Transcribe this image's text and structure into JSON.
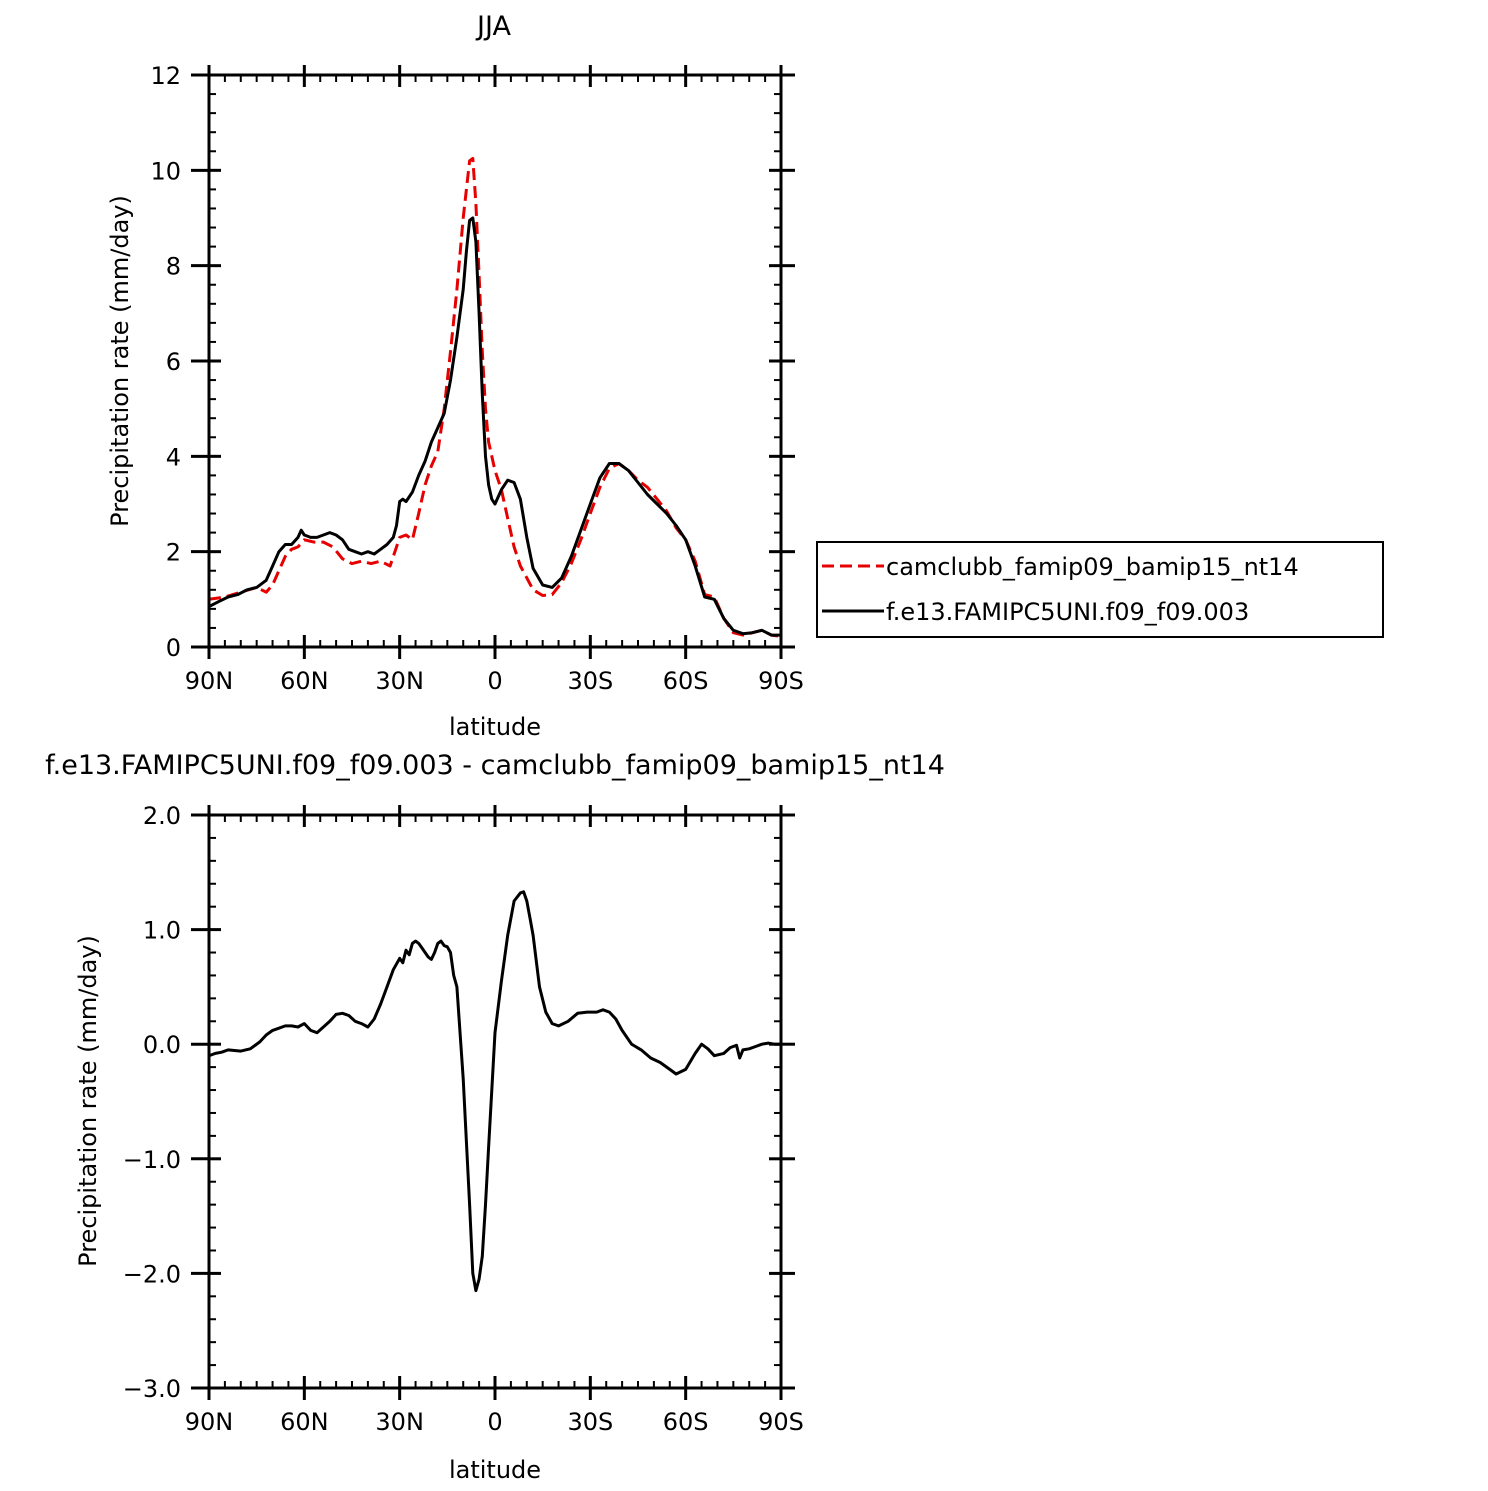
{
  "chart_data": [
    {
      "type": "line",
      "title": "JJA",
      "xlabel": "latitude",
      "ylabel": "Precipitation rate (mm/day)",
      "xlim": [
        90,
        -90
      ],
      "ylim": [
        0,
        12
      ],
      "xticks": [
        90,
        60,
        30,
        0,
        -30,
        -60,
        -90
      ],
      "xtick_labels": [
        "90N",
        "60N",
        "30N",
        "0",
        "30S",
        "60S",
        "90S"
      ],
      "yticks": [
        0,
        2,
        4,
        6,
        8,
        10,
        12
      ],
      "ytick_labels": [
        "0",
        "2",
        "4",
        "6",
        "8",
        "10",
        "12"
      ],
      "legend_position": "right",
      "series": [
        {
          "name": "camclubb_famip09_bamip15_nt14",
          "color": "#e60000",
          "style": "dashed",
          "x": [
            90,
            85,
            80,
            75,
            72,
            70,
            68,
            66,
            64,
            62,
            60,
            57,
            54,
            51,
            48,
            45,
            42,
            39,
            36,
            33,
            30,
            28,
            26,
            24,
            22,
            20,
            18,
            16,
            14,
            12,
            10,
            8,
            7,
            6,
            5,
            4,
            3,
            2,
            0,
            -2,
            -4,
            -6,
            -8,
            -10,
            -12,
            -15,
            -18,
            -21,
            -24,
            -27,
            -30,
            -33,
            -36,
            -39,
            -42,
            -45,
            -48,
            -51,
            -54,
            -57,
            -60,
            -63,
            -66,
            -69,
            -72,
            -75,
            -78,
            -81,
            -84,
            -87,
            -90
          ],
          "y": [
            1.0,
            1.05,
            1.15,
            1.25,
            1.15,
            1.3,
            1.6,
            1.9,
            2.05,
            2.1,
            2.25,
            2.2,
            2.2,
            2.1,
            1.85,
            1.75,
            1.8,
            1.75,
            1.8,
            1.7,
            2.3,
            2.35,
            2.25,
            2.8,
            3.4,
            3.8,
            4.1,
            5.0,
            6.2,
            7.5,
            9.0,
            10.2,
            10.25,
            9.3,
            7.8,
            6.2,
            5.0,
            4.3,
            3.7,
            3.3,
            2.7,
            2.1,
            1.7,
            1.45,
            1.2,
            1.08,
            1.1,
            1.35,
            1.75,
            2.25,
            2.8,
            3.35,
            3.75,
            3.85,
            3.7,
            3.5,
            3.35,
            3.1,
            2.85,
            2.5,
            2.25,
            1.8,
            1.1,
            1.05,
            0.6,
            0.3,
            0.25,
            0.3,
            0.35,
            0.25,
            0.22
          ]
        },
        {
          "name": "f.e13.FAMIPC5UNI.f09_f09.003",
          "color": "#000000",
          "style": "solid",
          "x": [
            90,
            87,
            84,
            81,
            78,
            75,
            72,
            70,
            68,
            66,
            64,
            62,
            61,
            60,
            58,
            56,
            54,
            52,
            50,
            48,
            46,
            44,
            42,
            40,
            38,
            36,
            34,
            32,
            31,
            30,
            29,
            28,
            27,
            26,
            24,
            22,
            20,
            18,
            16,
            14,
            12,
            10,
            9,
            8,
            7,
            6,
            5,
            4,
            3,
            2,
            1,
            0,
            -2,
            -4,
            -6,
            -8,
            -10,
            -12,
            -15,
            -18,
            -21,
            -24,
            -27,
            -30,
            -33,
            -36,
            -39,
            -42,
            -45,
            -48,
            -51,
            -54,
            -57,
            -60,
            -63,
            -66,
            -69,
            -72,
            -75,
            -78,
            -81,
            -84,
            -87,
            -90
          ],
          "y": [
            0.85,
            0.95,
            1.05,
            1.1,
            1.2,
            1.25,
            1.4,
            1.7,
            2.0,
            2.15,
            2.15,
            2.3,
            2.45,
            2.35,
            2.3,
            2.3,
            2.35,
            2.4,
            2.35,
            2.25,
            2.05,
            2.0,
            1.95,
            2.0,
            1.95,
            2.05,
            2.15,
            2.3,
            2.55,
            3.05,
            3.1,
            3.05,
            3.15,
            3.25,
            3.6,
            3.9,
            4.3,
            4.6,
            4.9,
            5.6,
            6.5,
            7.5,
            8.3,
            8.95,
            9.0,
            8.5,
            7.0,
            5.3,
            4.0,
            3.4,
            3.1,
            3.0,
            3.3,
            3.5,
            3.45,
            3.1,
            2.3,
            1.65,
            1.3,
            1.25,
            1.45,
            1.9,
            2.45,
            3.0,
            3.55,
            3.85,
            3.85,
            3.7,
            3.45,
            3.2,
            3.0,
            2.8,
            2.55,
            2.25,
            1.7,
            1.05,
            1.0,
            0.6,
            0.35,
            0.28,
            0.3,
            0.35,
            0.25,
            0.25
          ]
        }
      ]
    },
    {
      "type": "line",
      "title": "f.e13.FAMIPC5UNI.f09_f09.003 - camclubb_famip09_bamip15_nt14",
      "xlabel": "latitude",
      "ylabel": "Precipitation rate (mm/day)",
      "xlim": [
        90,
        -90
      ],
      "ylim": [
        -3.0,
        2.0
      ],
      "xticks": [
        90,
        60,
        30,
        0,
        -30,
        -60,
        -90
      ],
      "xtick_labels": [
        "90N",
        "60N",
        "30N",
        "0",
        "30S",
        "60S",
        "90S"
      ],
      "yticks": [
        -3.0,
        -2.0,
        -1.0,
        0.0,
        1.0,
        2.0
      ],
      "ytick_labels": [
        "−3.0",
        "−2.0",
        "−1.0",
        "0.0",
        "1.0",
        "2.0"
      ],
      "series": [
        {
          "color": "#000000",
          "style": "solid",
          "x": [
            90,
            88,
            86,
            84,
            80,
            77,
            74,
            72,
            70,
            68,
            66,
            64,
            62,
            60,
            58,
            56,
            54,
            52,
            50,
            48,
            46,
            44,
            42,
            40,
            38,
            36,
            34,
            32,
            30,
            29,
            28,
            27,
            26,
            25,
            24,
            23,
            22,
            21,
            20,
            19,
            18,
            17,
            16,
            15,
            14,
            13,
            12,
            10,
            8,
            7,
            6,
            5,
            4,
            3,
            2,
            1,
            0,
            -2,
            -4,
            -6,
            -8,
            -9,
            -10,
            -11,
            -12,
            -14,
            -16,
            -18,
            -20,
            -23,
            -26,
            -29,
            -32,
            -34,
            -36,
            -38,
            -40,
            -43,
            -46,
            -49,
            -52,
            -55,
            -57,
            -60,
            -63,
            -65,
            -67,
            -69,
            -72,
            -74,
            -76,
            -77,
            -78,
            -80,
            -82,
            -84,
            -86,
            -88,
            -90
          ],
          "y": [
            -0.1,
            -0.08,
            -0.07,
            -0.05,
            -0.06,
            -0.04,
            0.02,
            0.08,
            0.12,
            0.14,
            0.16,
            0.16,
            0.15,
            0.18,
            0.12,
            0.1,
            0.15,
            0.2,
            0.26,
            0.27,
            0.25,
            0.2,
            0.18,
            0.15,
            0.22,
            0.35,
            0.5,
            0.65,
            0.75,
            0.71,
            0.82,
            0.78,
            0.88,
            0.9,
            0.88,
            0.84,
            0.8,
            0.76,
            0.74,
            0.8,
            0.88,
            0.9,
            0.86,
            0.85,
            0.8,
            0.6,
            0.5,
            -0.3,
            -1.4,
            -2.0,
            -2.15,
            -2.05,
            -1.85,
            -1.4,
            -0.9,
            -0.4,
            0.1,
            0.55,
            0.95,
            1.25,
            1.32,
            1.33,
            1.25,
            1.1,
            0.95,
            0.5,
            0.28,
            0.18,
            0.16,
            0.2,
            0.27,
            0.28,
            0.28,
            0.3,
            0.28,
            0.22,
            0.12,
            0.0,
            -0.05,
            -0.12,
            -0.16,
            -0.22,
            -0.26,
            -0.22,
            -0.08,
            0.0,
            -0.04,
            -0.1,
            -0.08,
            -0.03,
            -0.01,
            -0.12,
            -0.05,
            -0.04,
            -0.02,
            0.0,
            0.01,
            0.0,
            0.0
          ]
        }
      ]
    }
  ]
}
